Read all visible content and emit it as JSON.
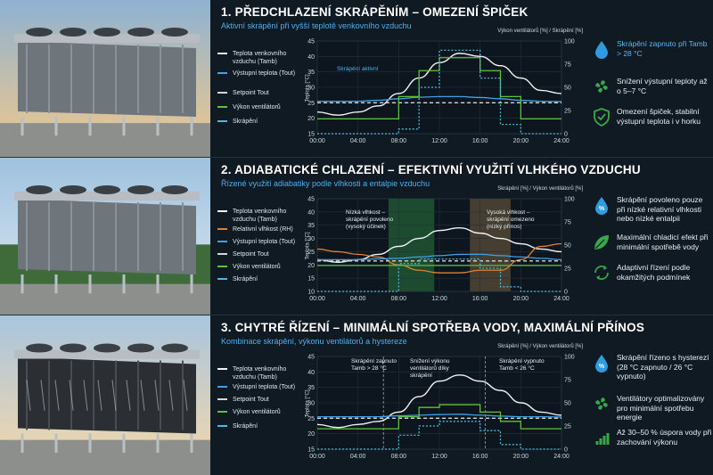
{
  "colors": {
    "tamb": "#f2f2f2",
    "tout": "#3ea1ea",
    "setpoint": "#d6d6d6",
    "fan": "#5ec23a",
    "spray": "#4fb8d8",
    "rh": "#e0802c",
    "accent": "#4fb0f0"
  },
  "panels": [
    {
      "title": "1. PŘEDCHLAZENÍ SKRÁPĚNÍM – OMEZENÍ ŠPIČEK",
      "subtitle": "Aktivní skrápění při vyšší teplotě venkovního vzduchu",
      "legend": [
        "Teplota venkovního vzduchu (Tamb)",
        "Výstupní teplota (Tout)",
        "Setpoint Tout",
        "Výkon ventilátorů",
        "Skrápění"
      ],
      "right_axis_label": "Výkon ventilátorů [%] / Skrápění [%]",
      "left_axis_label": "Teplota [°C]",
      "annotations": [
        "Skrápění aktivní"
      ],
      "features": [
        {
          "icon": "water-drop-icon",
          "text": "Skrápění zapnuto při Tamb > 28 °C",
          "blue": true
        },
        {
          "icon": "fan-icon",
          "text": "Snížení výstupní teploty až o 5–7 °C",
          "blue": false
        },
        {
          "icon": "shield-check-icon",
          "text": "Omezení špiček, stabilní výstupní teplota i v horku",
          "blue": false
        }
      ]
    },
    {
      "title": "2. ADIABATICKÉ CHLAZENÍ – EFEKTIVNÍ VYUŽITÍ VLHKÉHO VZDUCHU",
      "subtitle": "Řízené využití adiabatiky podle vlhkosti a entalpie vzduchu",
      "legend": [
        "Teplota venkovního vzduchu (Tamb)",
        "Relativní vlhkost (RH)",
        "Výstupní teplota (Tout)",
        "Setpoint Tout",
        "Výkon ventilátorů",
        "Skrápění"
      ],
      "right_axis_label": "Skrápění [%] / Výkon ventilátorů [%]",
      "left_axis_label": "Teplota [°C]",
      "annotations": [
        "Nízká vlhkost – skrápění povoleno (vysoký účinek)",
        "Vysoká vlhkost – skrápění omezeno (nízký přínos)"
      ],
      "features": [
        {
          "icon": "humidity-percent-icon",
          "text": "Skrápění povoleno pouze při nízké relativní vlhkosti nebo nízké entalpii",
          "blue": false
        },
        {
          "icon": "leaf-icon",
          "text": "Maximální chladicí efekt při minimální spotřebě vody",
          "blue": false
        },
        {
          "icon": "adaptive-cycle-icon",
          "text": "Adaptivní řízení podle okamžitých podmínek",
          "blue": false
        }
      ]
    },
    {
      "title": "3. CHYTRÉ ŘÍZENÍ – MINIMÁLNÍ SPOTŘEBA VODY, MAXIMÁLNÍ PŘÍNOS",
      "subtitle": "Kombinace skrápění, výkonu ventilátorů a hystereze",
      "legend": [
        "Teplota venkovního vzduchu (Tamb)",
        "Výstupní teplota (Tout)",
        "Setpoint Tout",
        "Výkon ventilátorů",
        "Skrápění"
      ],
      "right_axis_label": "Skrápění [%] / Výkon ventilátorů [%]",
      "left_axis_label": "Teplota [°C]",
      "annotations": [
        "Skrápění zapnuto Tamb > 28 °C",
        "Snížení výkonu ventilátorů díky skrápění",
        "Skrápění vypnuto Tamb < 26 °C"
      ],
      "features": [
        {
          "icon": "water-percent-icon",
          "text": "Skrápění řízeno s hysterezí (28 °C zapnuto / 26 °C vypnuto)",
          "blue": false
        },
        {
          "icon": "fan-icon",
          "text": "Ventilátory optimalizovány pro minimální spotřebu energie",
          "blue": false
        },
        {
          "icon": "bar-growth-icon",
          "text": "Až 30–50 % úspora vody při zachování výkonu",
          "blue": false
        }
      ]
    }
  ],
  "chart_data": [
    {
      "type": "line",
      "x": [
        "00:00",
        "02:00",
        "04:00",
        "06:00",
        "08:00",
        "10:00",
        "12:00",
        "14:00",
        "16:00",
        "18:00",
        "20:00",
        "22:00",
        "24:00"
      ],
      "xticks": [
        "00:00",
        "04:00",
        "08:00",
        "12:00",
        "16:00",
        "20:00",
        "24:00"
      ],
      "ylim": [
        15,
        45
      ],
      "yticks": [
        15,
        20,
        25,
        30,
        35,
        40,
        45
      ],
      "y2lim": [
        0,
        100
      ],
      "y2ticks": [
        0,
        25,
        50,
        75,
        100
      ],
      "series": [
        {
          "name": "Teplota venkovního vzduchu (Tamb)",
          "key": "tamb",
          "values": [
            22,
            21,
            22,
            24,
            28,
            33,
            38,
            41,
            40,
            37,
            33,
            29,
            28
          ]
        },
        {
          "name": "Výstupní teplota (Tout)",
          "key": "tout",
          "values": [
            25.5,
            25.5,
            25.5,
            25.8,
            26.3,
            26.8,
            27,
            27,
            26.7,
            26.3,
            25.8,
            25.5,
            25.4
          ]
        },
        {
          "name": "Setpoint Tout",
          "key": "setpoint",
          "values": [
            25,
            25,
            25,
            25,
            25,
            25,
            25,
            25,
            25,
            25,
            25,
            25,
            25
          ]
        },
        {
          "name": "Výkon ventilátorů",
          "key": "fan",
          "axis": "right",
          "step": true,
          "values": [
            16,
            16,
            16,
            16,
            40,
            68,
            82,
            82,
            68,
            40,
            16,
            16,
            16
          ]
        },
        {
          "name": "Skrápění",
          "key": "spray",
          "axis": "right",
          "step": true,
          "values": [
            0,
            0,
            0,
            0,
            5,
            50,
            90,
            90,
            60,
            10,
            0,
            0,
            0
          ]
        }
      ]
    },
    {
      "type": "line",
      "x": [
        "00:00",
        "02:00",
        "04:00",
        "06:00",
        "08:00",
        "10:00",
        "12:00",
        "14:00",
        "16:00",
        "18:00",
        "20:00",
        "22:00",
        "24:00"
      ],
      "xticks": [
        "00:00",
        "04:00",
        "08:00",
        "12:00",
        "16:00",
        "20:00",
        "24:00"
      ],
      "ylim": [
        10,
        45
      ],
      "yticks": [
        10,
        15,
        20,
        25,
        30,
        35,
        40,
        45
      ],
      "y2lim": [
        0,
        100
      ],
      "y2ticks": [
        0,
        25,
        50,
        75,
        100
      ],
      "shaded": [
        {
          "from": "07:00",
          "to": "11:30"
        },
        {
          "from": "15:00",
          "to": "19:00"
        }
      ],
      "series": [
        {
          "name": "Teplota venkovního vzduchu (Tamb)",
          "key": "tamb",
          "values": [
            22,
            21,
            22,
            24,
            27,
            30,
            33,
            34,
            32,
            30,
            28,
            26,
            25
          ]
        },
        {
          "name": "Relativní vlhkost (RH)",
          "key": "rh",
          "values": [
            26,
            25,
            24,
            23,
            20,
            18,
            17,
            17,
            18,
            18,
            22,
            27,
            28
          ]
        },
        {
          "name": "Výstupní teplota (Tout)",
          "key": "tout",
          "values": [
            22,
            22,
            22,
            22.3,
            22.5,
            23,
            23.5,
            24,
            24,
            23.5,
            23,
            22.5,
            22
          ]
        },
        {
          "name": "Setpoint Tout",
          "key": "setpoint",
          "values": [
            21.5,
            21.5,
            21.5,
            21.5,
            21.5,
            21.5,
            21.5,
            21.5,
            21.5,
            21.5,
            21.5,
            21.5,
            21.5
          ]
        },
        {
          "name": "Výkon ventilátorů",
          "key": "fan",
          "axis": "right",
          "step": true,
          "values": [
            28,
            28,
            28,
            28,
            28,
            28,
            28,
            28,
            28,
            28,
            28,
            28,
            28
          ]
        },
        {
          "name": "Skrápění",
          "key": "spray",
          "axis": "right",
          "step": true,
          "values": [
            0,
            0,
            0,
            0,
            30,
            35,
            35,
            35,
            25,
            5,
            0,
            0,
            0
          ]
        }
      ]
    },
    {
      "type": "line",
      "x": [
        "00:00",
        "02:00",
        "04:00",
        "06:00",
        "08:00",
        "10:00",
        "12:00",
        "14:00",
        "16:00",
        "18:00",
        "20:00",
        "22:00",
        "24:00"
      ],
      "xticks": [
        "00:00",
        "04:00",
        "08:00",
        "12:00",
        "16:00",
        "20:00",
        "24:00"
      ],
      "ylim": [
        15,
        45
      ],
      "yticks": [
        15,
        20,
        25,
        30,
        35,
        40,
        45
      ],
      "y2lim": [
        0,
        100
      ],
      "y2ticks": [
        0,
        25,
        50,
        75,
        100
      ],
      "markers": [
        "06:30",
        "16:30"
      ],
      "series": [
        {
          "name": "Teplota venkovního vzduchu (Tamb)",
          "key": "tamb",
          "values": [
            23,
            22,
            23,
            24,
            27,
            32,
            37,
            39,
            37,
            34,
            30,
            27,
            26
          ]
        },
        {
          "name": "Výstupní teplota (Tout)",
          "key": "tout",
          "values": [
            25.5,
            25.5,
            25.5,
            25.5,
            25.8,
            26,
            26.2,
            26.3,
            26,
            25.7,
            25.5,
            25.5,
            25.4
          ]
        },
        {
          "name": "Setpoint Tout",
          "key": "setpoint",
          "values": [
            25,
            25,
            25,
            25,
            25,
            25,
            25,
            25,
            25,
            25,
            25,
            25,
            25
          ]
        },
        {
          "name": "Výkon ventilátorů",
          "key": "fan",
          "axis": "right",
          "step": true,
          "values": [
            22,
            22,
            22,
            22,
            35,
            45,
            48,
            48,
            40,
            30,
            22,
            22,
            22
          ]
        },
        {
          "name": "Skrápění",
          "key": "spray",
          "axis": "right",
          "step": true,
          "values": [
            0,
            0,
            0,
            0,
            15,
            25,
            30,
            30,
            20,
            5,
            0,
            0,
            0
          ]
        }
      ]
    }
  ]
}
